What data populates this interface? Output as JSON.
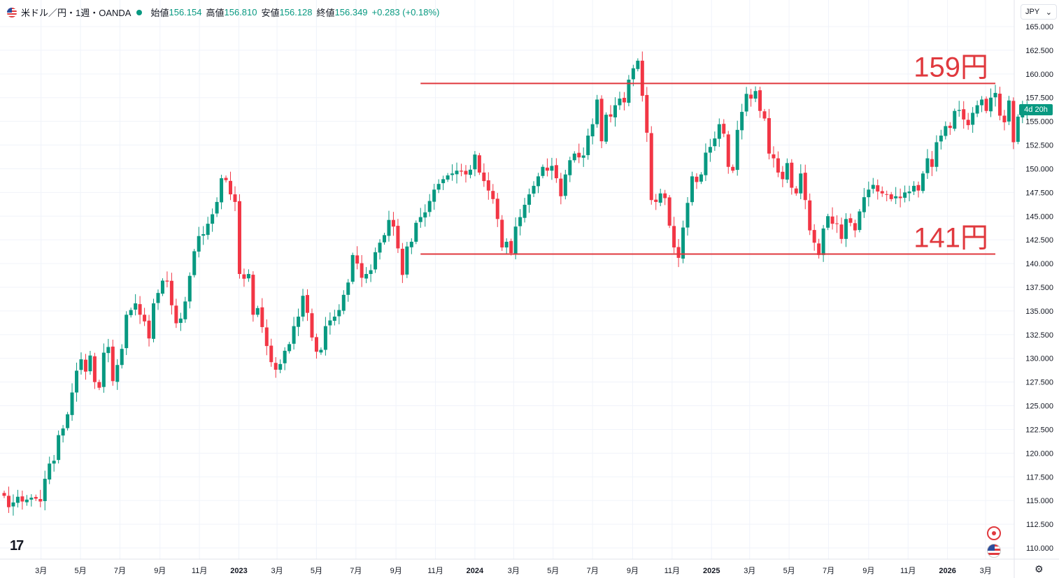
{
  "legend": {
    "symbol": "米ドル／円・1週・OANDA",
    "open_label": "始値",
    "open": "156.154",
    "high_label": "高値",
    "high": "156.810",
    "low_label": "安値",
    "low": "156.128",
    "close_label": "終値",
    "close": "156.349",
    "change": "+0.283 (+0.18%)"
  },
  "currency": "JPY",
  "currency_arrow": "⌄",
  "countdown": "4d 20h",
  "logo": "17",
  "settings_glyph": "⚙",
  "colors": {
    "up": "#089981",
    "down": "#f23645",
    "line": "#e0393e",
    "grid": "#f0f3fa",
    "text": "#131722"
  },
  "chart_data": {
    "type": "candlestick",
    "title": "米ドル／円・1週・OANDA",
    "currency": "JPY",
    "ylim": [
      108.75,
      166.25
    ],
    "y_ticks": [
      "110.000",
      "112.500",
      "115.000",
      "117.500",
      "120.000",
      "122.500",
      "125.000",
      "127.500",
      "130.000",
      "132.500",
      "135.000",
      "137.500",
      "140.000",
      "142.500",
      "145.000",
      "147.500",
      "150.000",
      "152.500",
      "155.000",
      "157.500",
      "160.000",
      "162.500",
      "165.000"
    ],
    "x_start": "2022-01-03",
    "x_end": "2026-03-16",
    "x_ticks": [
      {
        "date": "2022-03-01",
        "label": "3月"
      },
      {
        "date": "2022-05-01",
        "label": "5月"
      },
      {
        "date": "2022-07-01",
        "label": "7月"
      },
      {
        "date": "2022-09-01",
        "label": "9月"
      },
      {
        "date": "2022-11-01",
        "label": "11月"
      },
      {
        "date": "2023-01-01",
        "label": "2023",
        "bold": true
      },
      {
        "date": "2023-03-01",
        "label": "3月"
      },
      {
        "date": "2023-05-01",
        "label": "5月"
      },
      {
        "date": "2023-07-01",
        "label": "7月"
      },
      {
        "date": "2023-09-01",
        "label": "9月"
      },
      {
        "date": "2023-11-01",
        "label": "11月"
      },
      {
        "date": "2024-01-01",
        "label": "2024",
        "bold": true
      },
      {
        "date": "2024-03-01",
        "label": "3月"
      },
      {
        "date": "2024-05-01",
        "label": "5月"
      },
      {
        "date": "2024-07-01",
        "label": "7月"
      },
      {
        "date": "2024-09-01",
        "label": "9月"
      },
      {
        "date": "2024-11-01",
        "label": "11月"
      },
      {
        "date": "2025-01-01",
        "label": "2025",
        "bold": true
      },
      {
        "date": "2025-03-01",
        "label": "3月"
      },
      {
        "date": "2025-05-01",
        "label": "5月"
      },
      {
        "date": "2025-07-01",
        "label": "7月"
      },
      {
        "date": "2025-09-01",
        "label": "9月"
      },
      {
        "date": "2025-11-01",
        "label": "11月"
      },
      {
        "date": "2026-01-01",
        "label": "2026",
        "bold": true
      },
      {
        "date": "2026-03-01",
        "label": "3月"
      }
    ],
    "closes": [
      115.5,
      114.3,
      114.8,
      115.4,
      114.9,
      115.1,
      115.3,
      115.2,
      114.9,
      117.3,
      118.9,
      119.2,
      121.9,
      122.6,
      124.1,
      126.4,
      128.7,
      129.9,
      128.6,
      130.3,
      127.5,
      126.9,
      130.6,
      131.2,
      127.6,
      129.3,
      131.0,
      134.6,
      135.1,
      135.8,
      134.6,
      133.9,
      132.1,
      135.8,
      136.9,
      138.2,
      138.1,
      135.6,
      133.7,
      134.2,
      136.0,
      138.7,
      141.3,
      142.9,
      143.1,
      144.2,
      145.2,
      146.5,
      149.0,
      148.8,
      147.3,
      146.5,
      138.9,
      138.4,
      138.9,
      134.6,
      135.3,
      133.3,
      131.3,
      129.6,
      128.8,
      129.4,
      130.8,
      131.5,
      133.4,
      134.4,
      136.6,
      134.8,
      132.2,
      130.7,
      130.9,
      133.4,
      134.0,
      134.4,
      135.1,
      136.7,
      138.0,
      140.9,
      140.0,
      138.5,
      138.9,
      139.3,
      141.2,
      142.2,
      143.0,
      144.6,
      143.9,
      141.6,
      138.8,
      141.8,
      142.3,
      144.3,
      144.9,
      145.4,
      146.6,
      147.8,
      148.4,
      148.9,
      149.3,
      149.5,
      149.8,
      149.7,
      149.4,
      149.9,
      151.5,
      149.6,
      148.7,
      147.7,
      146.8,
      144.7,
      141.7,
      142.3,
      141.1,
      143.9,
      144.9,
      146.2,
      147.3,
      148.2,
      149.2,
      150.2,
      149.8,
      150.3,
      149.0,
      147.1,
      149.4,
      150.9,
      151.6,
      151.2,
      151.4,
      153.5,
      154.7,
      157.3,
      152.9,
      155.7,
      155.5,
      156.7,
      157.4,
      157.0,
      159.4,
      160.6,
      161.4,
      157.7,
      153.8,
      146.7,
      146.5,
      147.4,
      146.9,
      144.0,
      141.7,
      140.6,
      143.8,
      146.4,
      149.2,
      148.6,
      149.4,
      151.7,
      152.3,
      153.2,
      154.7,
      153.7,
      150.2,
      149.8,
      154.1,
      156.0,
      157.9,
      157.4,
      158.2,
      156.1,
      155.3,
      151.6,
      151.1,
      149.6,
      148.9,
      150.6,
      148.0,
      147.4,
      149.5,
      146.7,
      143.5,
      142.2,
      140.9,
      143.7,
      145.0,
      144.2,
      144.2,
      142.6,
      144.7,
      144.3,
      143.5,
      145.5,
      147.0,
      147.8,
      148.3,
      147.6,
      147.4,
      147.3,
      146.8,
      147.1,
      146.9,
      147.5,
      147.6,
      148.2,
      147.7,
      149.5,
      151.1,
      150.2,
      152.8,
      153.5,
      154.5,
      154.3,
      156.1,
      156.2,
      155.2,
      154.6,
      155.9,
      156.7,
      157.3,
      156.1,
      157.5,
      158.0,
      155.6,
      154.9,
      157.2,
      152.8,
      155.5,
      156.2,
      156.3
    ]
  },
  "annotations": {
    "resistance": {
      "price": 159,
      "label": "159円",
      "from_date": "2023-10-09",
      "to_date": "2026-03-16"
    },
    "support": {
      "price": 141,
      "label": "141円",
      "from_date": "2023-10-09",
      "to_date": "2026-03-16"
    }
  }
}
